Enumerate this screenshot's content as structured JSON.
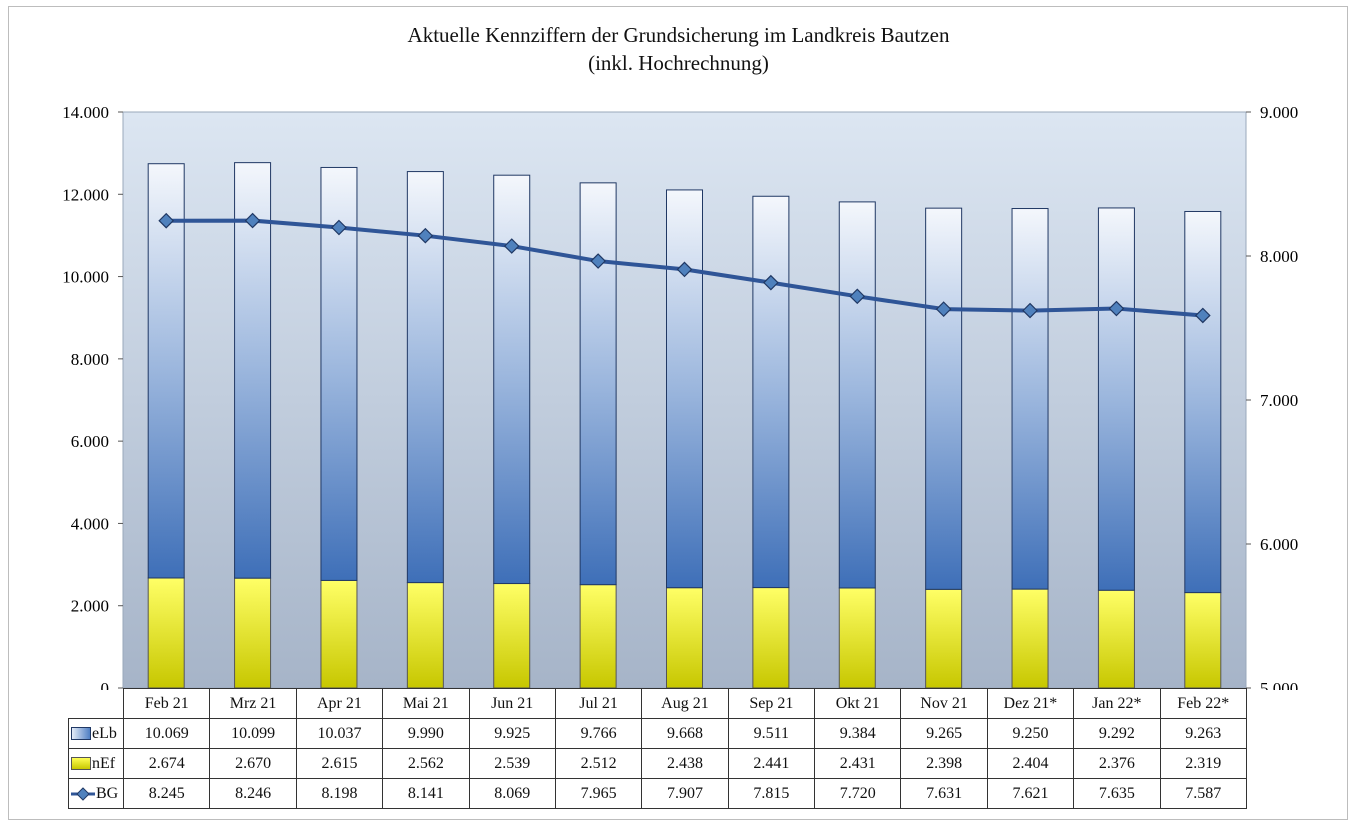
{
  "chart_data": {
    "type": "bar",
    "title": "Aktuelle Kennziffern der Grundsicherung im Landkreis Bautzen",
    "subtitle": "(inkl. Hochrechnung)",
    "categories": [
      "Feb 21",
      "Mrz 21",
      "Apr 21",
      "Mai 21",
      "Jun 21",
      "Jul 21",
      "Aug 21",
      "Sep 21",
      "Okt 21",
      "Nov 21",
      "Dez 21*",
      "Jan 22*",
      "Feb 22*"
    ],
    "series": [
      {
        "name": "eLb",
        "type": "bar",
        "axis": "left",
        "stacked": true,
        "values": [
          10069,
          10099,
          10037,
          9990,
          9925,
          9766,
          9668,
          9511,
          9384,
          9265,
          9250,
          9292,
          9263
        ],
        "labels": [
          "10.069",
          "10.099",
          "10.037",
          "9.990",
          "9.925",
          "9.766",
          "9.668",
          "9.511",
          "9.384",
          "9.265",
          "9.250",
          "9.292",
          "9.263"
        ],
        "color": "#4f7fc4"
      },
      {
        "name": "nEf",
        "type": "bar",
        "axis": "left",
        "stacked": true,
        "values": [
          2674,
          2670,
          2615,
          2562,
          2539,
          2512,
          2438,
          2441,
          2431,
          2398,
          2404,
          2376,
          2319
        ],
        "labels": [
          "2.674",
          "2.670",
          "2.615",
          "2.562",
          "2.539",
          "2.512",
          "2.438",
          "2.441",
          "2.431",
          "2.398",
          "2.404",
          "2.376",
          "2.319"
        ],
        "color": "#e6e600"
      },
      {
        "name": "BG",
        "type": "line",
        "axis": "right",
        "values": [
          8245,
          8246,
          8198,
          8141,
          8069,
          7965,
          7907,
          7815,
          7720,
          7631,
          7621,
          7635,
          7587
        ],
        "labels": [
          "8.245",
          "8.246",
          "8.198",
          "8.141",
          "8.069",
          "7.965",
          "7.907",
          "7.815",
          "7.720",
          "7.631",
          "7.621",
          "7.635",
          "7.587"
        ],
        "color": "#2f5597"
      }
    ],
    "y_left": {
      "lim": [
        0,
        14000
      ],
      "ticks": [
        0,
        2000,
        4000,
        6000,
        8000,
        10000,
        12000,
        14000
      ],
      "tick_labels": [
        "0",
        "2.000",
        "4.000",
        "6.000",
        "8.000",
        "10.000",
        "12.000",
        "14.000"
      ]
    },
    "y_right": {
      "lim": [
        5000,
        9000
      ],
      "ticks": [
        5000,
        6000,
        7000,
        8000,
        9000
      ],
      "tick_labels": [
        "5.000",
        "6.000",
        "7.000",
        "8.000",
        "9.000"
      ]
    },
    "legend": "data table",
    "grid": false,
    "colors": {
      "background_top": "#dce6f2",
      "background_bottom": "#a6b4c8"
    }
  }
}
